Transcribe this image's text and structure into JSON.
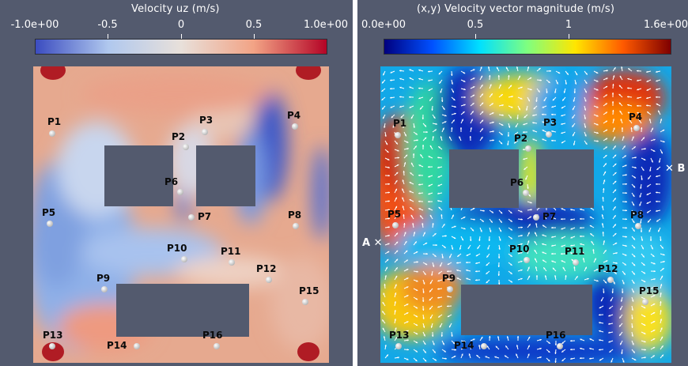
{
  "left_panel": {
    "title": "Velocity uz (m/s)",
    "ticks": [
      "-1.0e+00",
      "-0.5",
      "0",
      "0.5",
      "1.0e+00"
    ],
    "colormap": [
      "#3b4cc0",
      "#b0c8ee",
      "#e8e0da",
      "#f2a385",
      "#b40426"
    ],
    "probes": [
      {
        "label": "P1"
      },
      {
        "label": "P2"
      },
      {
        "label": "P3"
      },
      {
        "label": "P4"
      },
      {
        "label": "P5"
      },
      {
        "label": "P6"
      },
      {
        "label": "P7"
      },
      {
        "label": "P8"
      },
      {
        "label": "P9"
      },
      {
        "label": "P10"
      },
      {
        "label": "P11"
      },
      {
        "label": "P12"
      },
      {
        "label": "P13"
      },
      {
        "label": "P14"
      },
      {
        "label": "P15"
      },
      {
        "label": "P16"
      }
    ]
  },
  "right_panel": {
    "title": "(x,y) Velocity vector magnitude (m/s)",
    "ticks": [
      "0.0e+00",
      "0.5",
      "1",
      "1.6e+00"
    ],
    "colormap": [
      "#00007f",
      "#0050ff",
      "#00e0ff",
      "#7fff7f",
      "#ffe600",
      "#ff5a00",
      "#7f0000"
    ],
    "markers": {
      "a": "A",
      "b": "B"
    },
    "probes": [
      {
        "label": "P1"
      },
      {
        "label": "P2"
      },
      {
        "label": "P3"
      },
      {
        "label": "P4"
      },
      {
        "label": "P5"
      },
      {
        "label": "P6"
      },
      {
        "label": "P7"
      },
      {
        "label": "P8"
      },
      {
        "label": "P9"
      },
      {
        "label": "P10"
      },
      {
        "label": "P11"
      },
      {
        "label": "P12"
      },
      {
        "label": "P13"
      },
      {
        "label": "P14"
      },
      {
        "label": "P15"
      },
      {
        "label": "P16"
      }
    ]
  },
  "colors": {
    "background": "#535a6e",
    "obstacle": "#535a6e",
    "vector": "#ffffff"
  }
}
